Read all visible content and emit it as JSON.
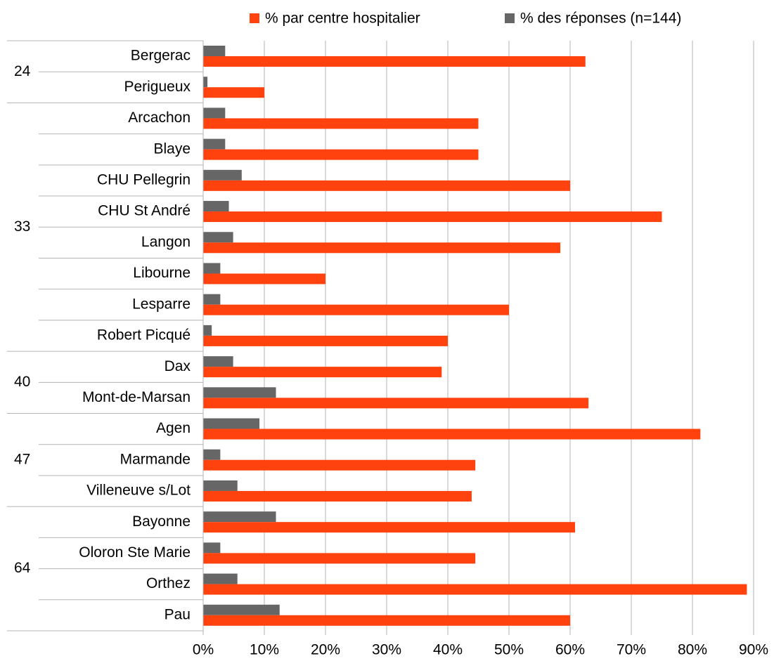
{
  "chart_data": {
    "type": "bar",
    "orientation": "horizontal",
    "groups": [
      {
        "label": "24",
        "categories": [
          "Bergerac",
          "Perigueux"
        ]
      },
      {
        "label": "33",
        "categories": [
          "Arcachon",
          "Blaye",
          "CHU Pellegrin",
          "CHU St André",
          "Langon",
          "Libourne",
          "Lesparre",
          "Robert Picqué"
        ]
      },
      {
        "label": "40",
        "categories": [
          "Dax",
          "Mont-de-Marsan"
        ]
      },
      {
        "label": "47",
        "categories": [
          "Agen",
          "Marmande",
          "Villeneuve s/Lot"
        ]
      },
      {
        "label": "64",
        "categories": [
          "Bayonne",
          "Oloron Ste Marie",
          "Orthez",
          "Pau"
        ]
      }
    ],
    "series": [
      {
        "name": "% par centre hospitalier",
        "color": "#ff420e",
        "values": [
          62.5,
          10,
          45,
          45,
          60,
          75,
          58.4,
          20,
          50,
          40,
          39,
          63,
          81.3,
          44.5,
          43.9,
          60.8,
          44.5,
          88.9,
          60
        ]
      },
      {
        "name": "% des réponses (n=144)",
        "color": "#666666",
        "values": [
          3.6,
          0.7,
          3.6,
          3.6,
          6.3,
          4.2,
          4.9,
          2.8,
          2.8,
          1.4,
          4.9,
          11.9,
          9.2,
          2.8,
          5.6,
          11.9,
          2.8,
          5.6,
          12.5
        ]
      }
    ],
    "xlim": [
      0,
      90
    ],
    "xticks": [
      {
        "value": 0,
        "label": "0%"
      },
      {
        "value": 10,
        "label": "10%"
      },
      {
        "value": 20,
        "label": "20%"
      },
      {
        "value": 30,
        "label": "30%"
      },
      {
        "value": 40,
        "label": "40%"
      },
      {
        "value": 50,
        "label": "50%"
      },
      {
        "value": 60,
        "label": "60%"
      },
      {
        "value": 70,
        "label": "70%"
      },
      {
        "value": 80,
        "label": "80%"
      },
      {
        "value": 90,
        "label": "90%"
      }
    ],
    "grid": true,
    "legend": "top"
  }
}
